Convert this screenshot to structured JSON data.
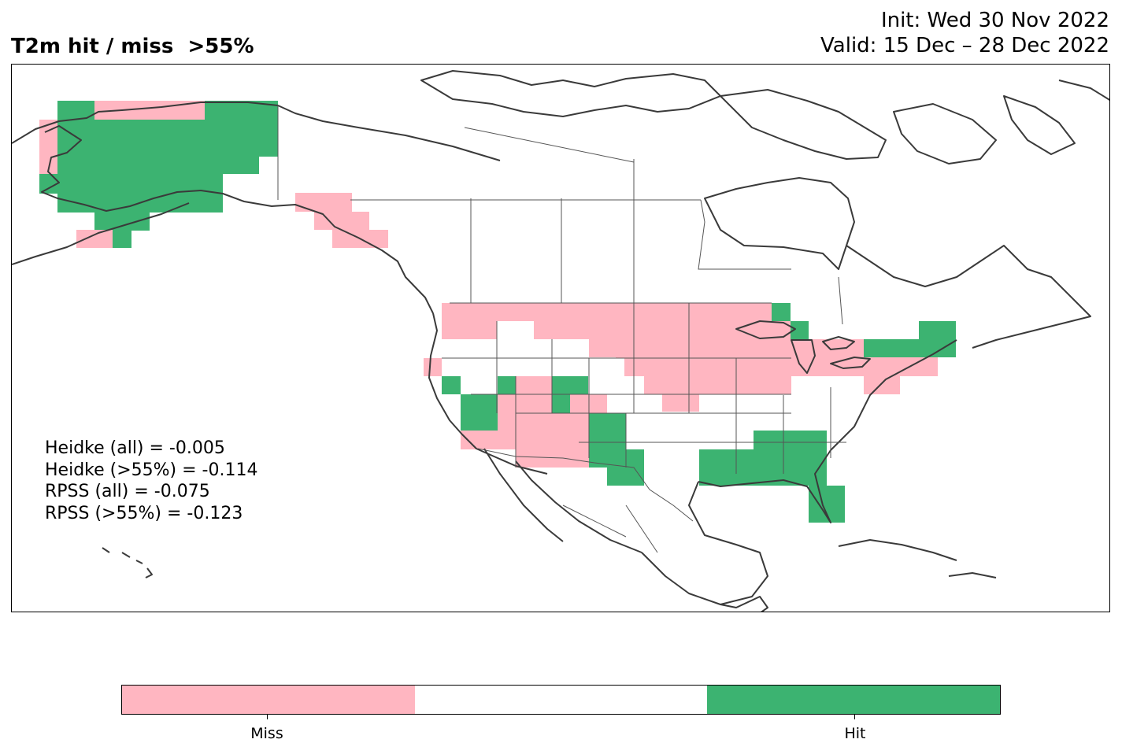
{
  "header": {
    "title": "T2m hit / miss  >55%",
    "init": "Init: Wed 30 Nov 2022",
    "valid": "Valid: 15 Dec – 28 Dec 2022"
  },
  "stats": [
    "Heidke (all) = -0.005",
    "Heidke (>55%) = -0.114",
    "RPSS (all) = -0.075",
    "RPSS (>55%) = -0.123"
  ],
  "legend": {
    "colors": {
      "miss": "#ffb6c1",
      "neutral": "#ffffff",
      "hit": "#3cb371"
    },
    "labels": {
      "miss": "Miss",
      "hit": "Hit"
    }
  },
  "colors": {
    "miss": "#ffb6c1",
    "hit": "#3cb371",
    "coast": "#3a3a3a",
    "border": "#555555"
  }
}
